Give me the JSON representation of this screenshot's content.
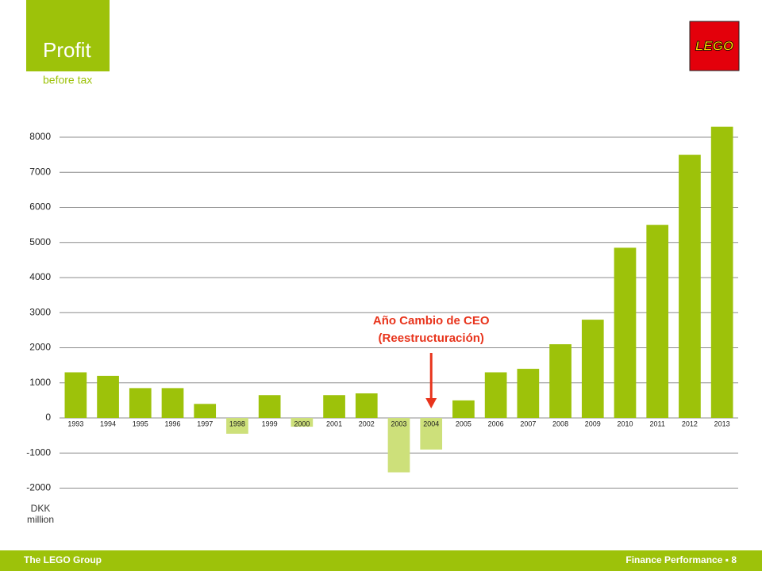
{
  "header": {
    "title": "Profit",
    "subtitle": "before tax",
    "logo": "LEGO"
  },
  "footer": {
    "left": "The LEGO Group",
    "right": "Finance Performance ▪ 8"
  },
  "chart_data": {
    "type": "bar",
    "y_label": "DKK million",
    "categories": [
      "1993",
      "1994",
      "1995",
      "1996",
      "1997",
      "1998",
      "1999",
      "2000",
      "2001",
      "2002",
      "2003",
      "2004",
      "2005",
      "2006",
      "2007",
      "2008",
      "2009",
      "2010",
      "2011",
      "2012",
      "2013"
    ],
    "values": [
      1300,
      1200,
      850,
      850,
      400,
      -450,
      650,
      -250,
      650,
      700,
      -1550,
      -900,
      500,
      1300,
      1400,
      2100,
      2800,
      4850,
      5500,
      7500,
      8300
    ],
    "color": "#9dc20a",
    "negative_color": "#cde07a",
    "ylim": [
      -2000,
      8500
    ],
    "yticks": [
      -2000,
      -1000,
      0,
      1000,
      2000,
      3000,
      4000,
      5000,
      6000,
      7000,
      8000
    ],
    "grid": true,
    "annotation": {
      "lines": [
        "Año Cambio de CEO",
        "(Reestructuración)"
      ],
      "category": "2004",
      "color": "#e8341c"
    }
  }
}
